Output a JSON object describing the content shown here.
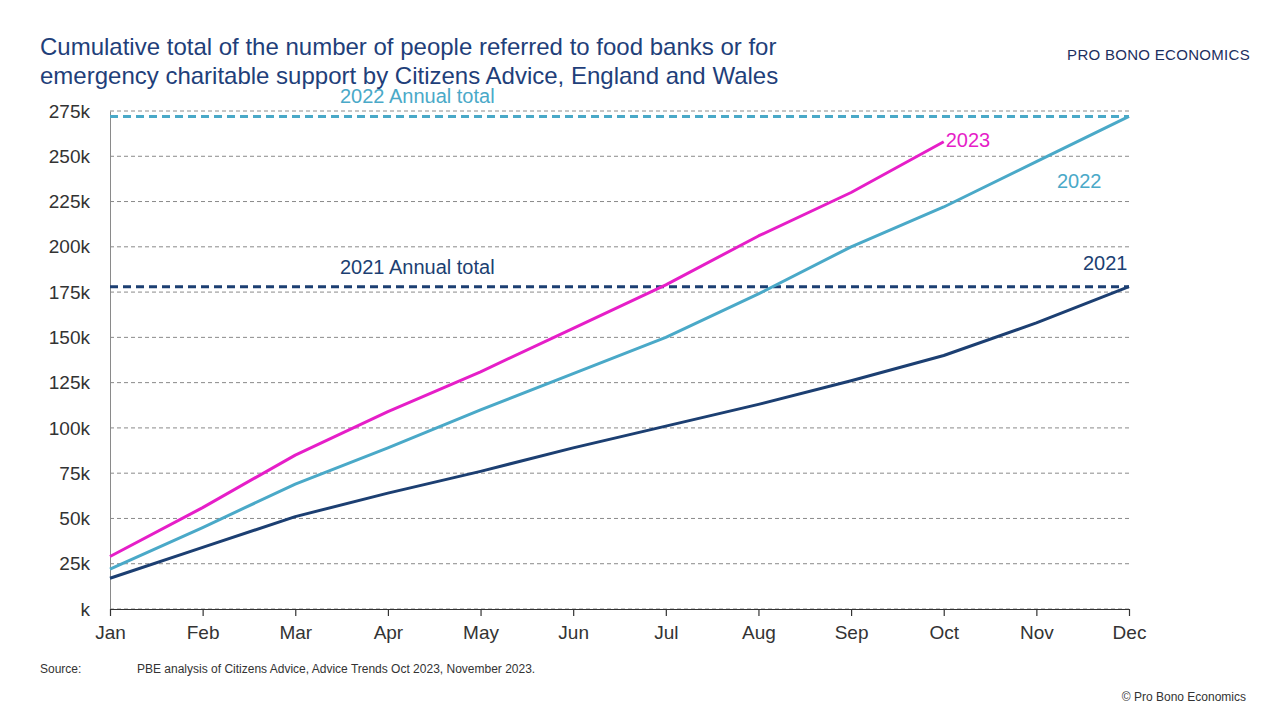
{
  "chart_data": {
    "type": "line",
    "title": [
      "Cumulative total of the number of people referred to food banks or for",
      "emergency charitable support by Citizens Advice, England and Wales"
    ],
    "logo": "PRO BONO ECONOMICS",
    "source_label": "Source:",
    "source": "PBE analysis of Citizens Advice, Advice Trends Oct 2023, November 2023.",
    "copyright": "© Pro Bono Economics",
    "categories": [
      "Jan",
      "Feb",
      "Mar",
      "Apr",
      "May",
      "Jun",
      "Jul",
      "Aug",
      "Sep",
      "Oct",
      "Nov",
      "Dec"
    ],
    "series": [
      {
        "name": "2021",
        "color": "#1c3f72",
        "line_style": "solid",
        "values": [
          17000,
          34000,
          51000,
          64000,
          76000,
          89000,
          101000,
          113000,
          126000,
          140000,
          158000,
          178000
        ]
      },
      {
        "name": "2022",
        "color": "#4aa9c8",
        "line_style": "solid",
        "values": [
          22000,
          45000,
          69000,
          89000,
          110000,
          130000,
          150000,
          174000,
          200000,
          222000,
          247000,
          272000
        ]
      },
      {
        "name": "2023",
        "color": "#e61ec8",
        "line_style": "solid",
        "values": [
          29000,
          56000,
          85000,
          109000,
          131000,
          155000,
          179000,
          206000,
          230000,
          258000,
          null,
          null
        ]
      }
    ],
    "annotations": [
      {
        "text": "2022 Annual total",
        "value": 272000,
        "color": "#4aa9c8",
        "line_style": "dashed"
      },
      {
        "text": "2021 Annual total",
        "value": 178000,
        "color": "#1c3f72",
        "line_style": "dashed"
      }
    ],
    "ylim": [
      0,
      275000
    ],
    "yticks": [
      {
        "value": 0,
        "label": "k"
      },
      {
        "value": 25000,
        "label": "25k"
      },
      {
        "value": 50000,
        "label": "50k"
      },
      {
        "value": 75000,
        "label": "75k"
      },
      {
        "value": 100000,
        "label": "100k"
      },
      {
        "value": 125000,
        "label": "125k"
      },
      {
        "value": 150000,
        "label": "150k"
      },
      {
        "value": 175000,
        "label": "175k"
      },
      {
        "value": 200000,
        "label": "200k"
      },
      {
        "value": 225000,
        "label": "225k"
      },
      {
        "value": 250000,
        "label": "250k"
      },
      {
        "value": 275000,
        "label": "275k"
      }
    ],
    "grid": true
  }
}
